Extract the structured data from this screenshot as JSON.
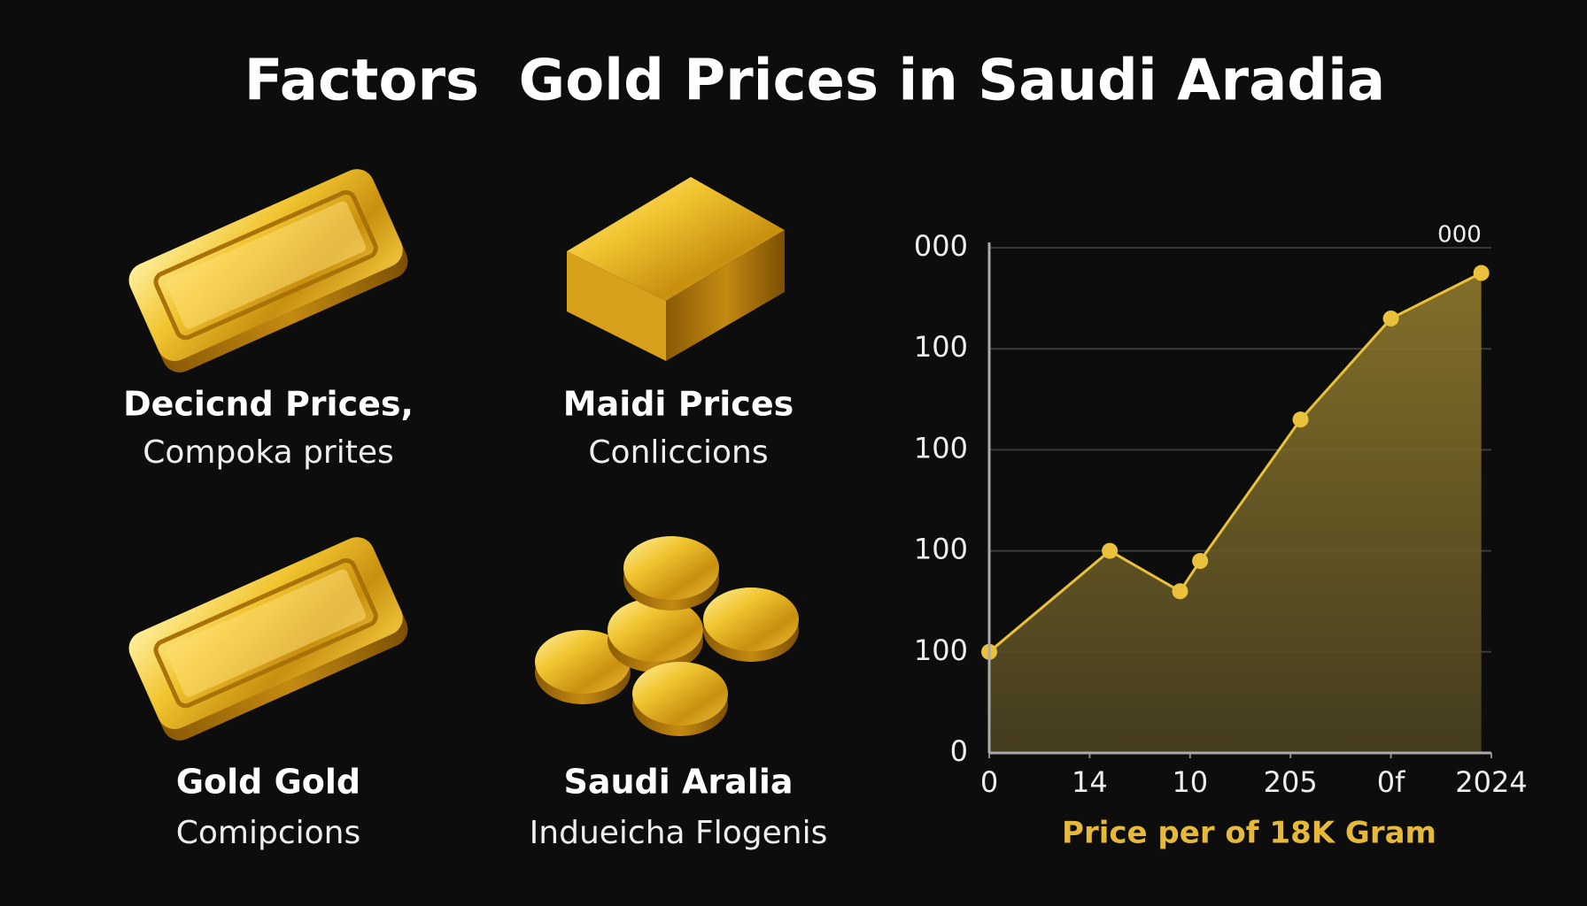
{
  "title": "Factors  Gold Prices in Saudi Aradia",
  "cards": [
    {
      "title": "Decicnd Prices,",
      "subtitle": "Compoka prites"
    },
    {
      "title": "Maidi Prices",
      "subtitle": "Conliccions"
    },
    {
      "title": "Gold Gold",
      "subtitle": "Comipcions"
    },
    {
      "title": "Saudi Aralia",
      "subtitle": "Indueicha Flogenis"
    }
  ],
  "chart_data": {
    "type": "line",
    "x": [
      0,
      1.2,
      1.9,
      2.1,
      3.1,
      4,
      4.9
    ],
    "values": [
      1,
      2,
      1.6,
      1.9,
      3.3,
      4.3,
      4.75
    ],
    "color": "#e9c13c",
    "xlim": [
      0,
      5
    ],
    "xticks": [
      0,
      {
        "value": 1,
        "label": "14"
      },
      {
        "value": 2,
        "label": "10"
      },
      {
        "value": 3,
        "label": "205"
      },
      {
        "value": 4,
        "label": "0f"
      },
      {
        "value": 5,
        "label": "2024"
      }
    ],
    "ylim": [
      0,
      5
    ],
    "yticks": [
      0,
      {
        "value": 1,
        "label": "100"
      },
      {
        "value": 2,
        "label": "100"
      },
      {
        "value": 3,
        "label": "100"
      },
      {
        "value": 4,
        "label": "100"
      },
      {
        "value": 5,
        "label": "000"
      }
    ],
    "grid": true,
    "annotation": "000",
    "xlabel": "Price per of 18K Gram"
  }
}
